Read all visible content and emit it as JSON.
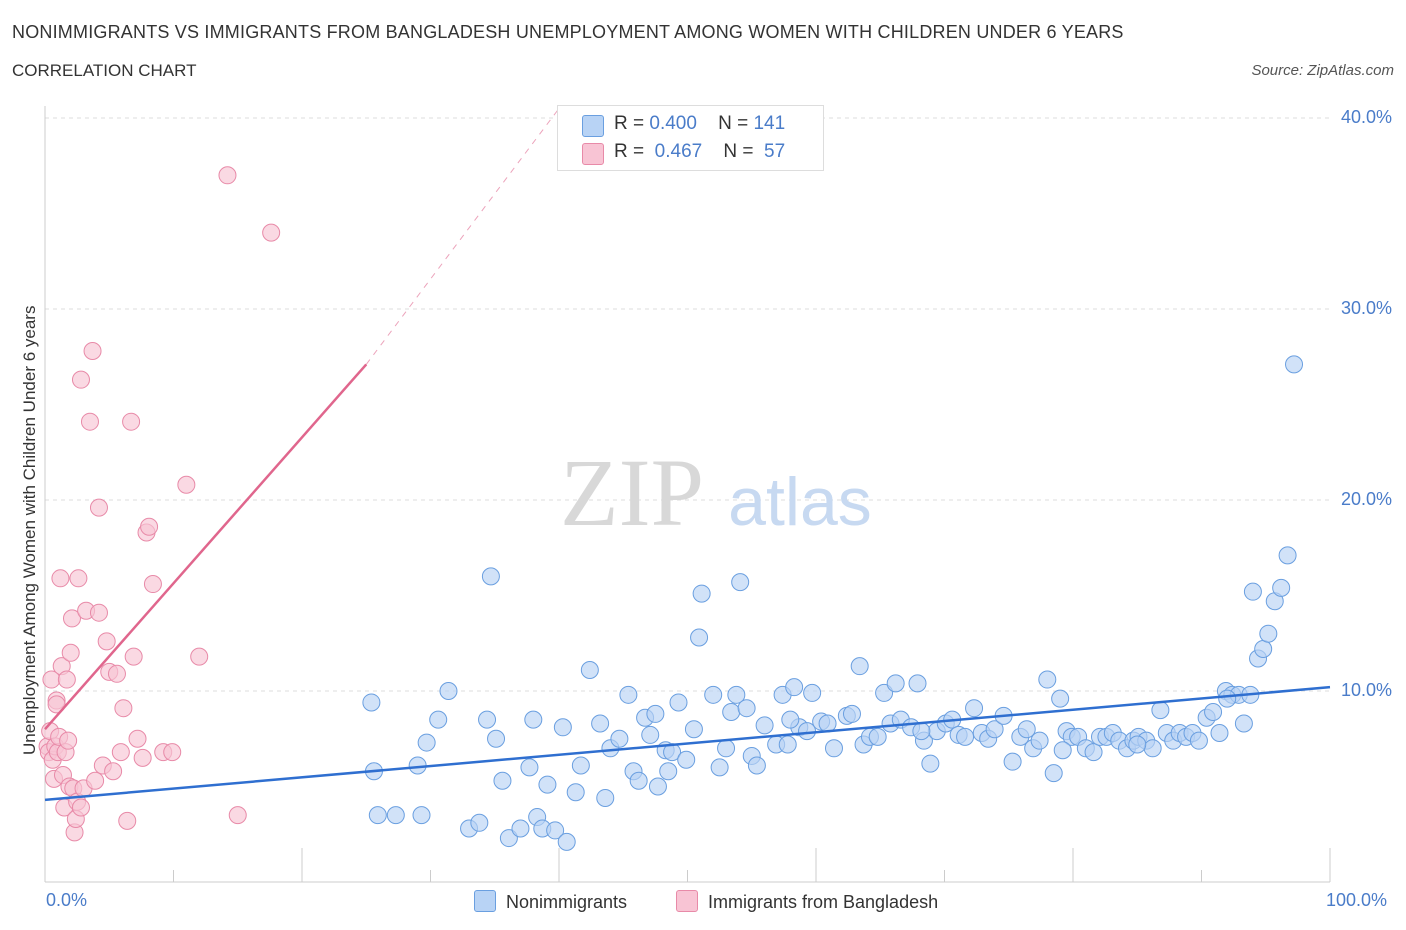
{
  "title": "NONIMMIGRANTS VS IMMIGRANTS FROM BANGLADESH UNEMPLOYMENT AMONG WOMEN WITH CHILDREN UNDER 6 YEARS",
  "subtitle": "CORRELATION CHART",
  "source": "Source: ZipAtlas.com",
  "watermark": {
    "zip": "ZIP",
    "atlas": "atlas"
  },
  "colors": {
    "blue_fill": "#b8d3f5",
    "blue_stroke": "#6a9fe0",
    "blue_line": "#2f6fd0",
    "pink_fill": "#f8c4d4",
    "pink_stroke": "#e88aa8",
    "pink_line": "#e0668d",
    "grid": "#dddddd",
    "axis_text": "#4a7cc9"
  },
  "legend": {
    "rows": [
      {
        "r_label": "R =",
        "r_value": "0.400",
        "n_label": "N =",
        "n_value": "141"
      },
      {
        "r_label": "R =",
        "r_value": "0.467",
        "n_label": "N =",
        "n_value": "57"
      }
    ]
  },
  "bottom_legend": {
    "series1": "Nonimmigrants",
    "series2": "Immigrants from Bangladesh"
  },
  "chart_data": {
    "type": "scatter",
    "xlabel": "",
    "ylabel": "Unemployment Among Women with Children Under 6 years",
    "xlim": [
      0,
      100
    ],
    "ylim": [
      0,
      40
    ],
    "y_ticks": [
      "10.0%",
      "20.0%",
      "30.0%",
      "40.0%"
    ],
    "y_tick_values": [
      10,
      20,
      30,
      40
    ],
    "x_tick_labels": [
      "0.0%",
      "100.0%"
    ],
    "grid": true,
    "legend_position": "top-center",
    "series": [
      {
        "name": "Nonimmigrants",
        "trend": {
          "x": [
            0,
            100
          ],
          "y": [
            4.3,
            10.2
          ]
        },
        "points": [
          [
            25.4,
            9.4
          ],
          [
            25.6,
            5.8
          ],
          [
            25.9,
            3.5
          ],
          [
            27.3,
            3.5
          ],
          [
            29.0,
            6.1
          ],
          [
            29.3,
            3.5
          ],
          [
            29.7,
            7.3
          ],
          [
            30.6,
            8.5
          ],
          [
            31.4,
            10.0
          ],
          [
            33.0,
            2.8
          ],
          [
            33.8,
            3.1
          ],
          [
            34.4,
            8.5
          ],
          [
            34.7,
            16.0
          ],
          [
            35.1,
            7.5
          ],
          [
            35.6,
            5.3
          ],
          [
            36.1,
            2.3
          ],
          [
            37.0,
            2.8
          ],
          [
            37.7,
            6.0
          ],
          [
            38.0,
            8.5
          ],
          [
            38.3,
            3.4
          ],
          [
            38.7,
            2.8
          ],
          [
            39.1,
            5.1
          ],
          [
            39.7,
            2.7
          ],
          [
            40.3,
            8.1
          ],
          [
            40.6,
            2.1
          ],
          [
            41.3,
            4.7
          ],
          [
            41.7,
            6.1
          ],
          [
            42.4,
            11.1
          ],
          [
            43.2,
            8.3
          ],
          [
            43.6,
            4.4
          ],
          [
            44.0,
            7.0
          ],
          [
            44.7,
            7.5
          ],
          [
            45.4,
            9.8
          ],
          [
            45.8,
            5.8
          ],
          [
            46.2,
            5.3
          ],
          [
            46.7,
            8.6
          ],
          [
            47.1,
            7.7
          ],
          [
            47.5,
            8.8
          ],
          [
            47.7,
            5.0
          ],
          [
            48.3,
            6.9
          ],
          [
            48.8,
            6.8
          ],
          [
            49.3,
            9.4
          ],
          [
            49.9,
            6.4
          ],
          [
            50.5,
            8.0
          ],
          [
            50.9,
            12.8
          ],
          [
            51.1,
            15.1
          ],
          [
            52.0,
            9.8
          ],
          [
            52.5,
            6.0
          ],
          [
            53.0,
            7.0
          ],
          [
            53.4,
            8.9
          ],
          [
            53.8,
            9.8
          ],
          [
            54.1,
            15.7
          ],
          [
            54.6,
            9.1
          ],
          [
            55.0,
            6.6
          ],
          [
            55.4,
            6.1
          ],
          [
            56.0,
            8.2
          ],
          [
            56.9,
            7.2
          ],
          [
            57.4,
            9.8
          ],
          [
            57.8,
            7.2
          ],
          [
            58.3,
            10.2
          ],
          [
            58.7,
            8.1
          ],
          [
            59.3,
            7.9
          ],
          [
            59.7,
            9.9
          ],
          [
            60.4,
            8.4
          ],
          [
            60.9,
            8.3
          ],
          [
            61.4,
            7.0
          ],
          [
            62.4,
            8.7
          ],
          [
            62.8,
            8.8
          ],
          [
            63.4,
            11.3
          ],
          [
            63.7,
            7.2
          ],
          [
            64.2,
            7.6
          ],
          [
            64.8,
            7.6
          ],
          [
            65.3,
            9.9
          ],
          [
            65.8,
            8.3
          ],
          [
            66.2,
            10.4
          ],
          [
            66.6,
            8.5
          ],
          [
            67.4,
            8.1
          ],
          [
            67.9,
            10.4
          ],
          [
            68.4,
            7.4
          ],
          [
            68.9,
            6.2
          ],
          [
            69.4,
            7.9
          ],
          [
            70.1,
            8.3
          ],
          [
            70.6,
            8.5
          ],
          [
            71.1,
            7.7
          ],
          [
            71.6,
            7.6
          ],
          [
            72.3,
            9.1
          ],
          [
            72.9,
            7.8
          ],
          [
            73.4,
            7.5
          ],
          [
            73.9,
            8.0
          ],
          [
            74.6,
            8.7
          ],
          [
            75.3,
            6.3
          ],
          [
            75.9,
            7.6
          ],
          [
            76.4,
            8.0
          ],
          [
            76.9,
            7.0
          ],
          [
            77.4,
            7.4
          ],
          [
            78.0,
            10.6
          ],
          [
            78.5,
            5.7
          ],
          [
            79.0,
            9.6
          ],
          [
            79.5,
            7.9
          ],
          [
            79.9,
            7.6
          ],
          [
            80.4,
            7.6
          ],
          [
            81.0,
            7.0
          ],
          [
            81.6,
            6.8
          ],
          [
            82.1,
            7.6
          ],
          [
            82.6,
            7.6
          ],
          [
            83.1,
            7.8
          ],
          [
            83.6,
            7.4
          ],
          [
            84.2,
            7.0
          ],
          [
            84.7,
            7.4
          ],
          [
            85.1,
            7.6
          ],
          [
            85.7,
            7.4
          ],
          [
            86.2,
            7.0
          ],
          [
            86.8,
            9.0
          ],
          [
            87.3,
            7.8
          ],
          [
            87.8,
            7.4
          ],
          [
            88.3,
            7.8
          ],
          [
            88.8,
            7.6
          ],
          [
            89.3,
            7.8
          ],
          [
            89.8,
            7.4
          ],
          [
            90.4,
            8.6
          ],
          [
            90.9,
            8.9
          ],
          [
            91.4,
            7.8
          ],
          [
            91.9,
            10.0
          ],
          [
            92.4,
            9.8
          ],
          [
            92.9,
            9.8
          ],
          [
            93.3,
            8.3
          ],
          [
            93.8,
            9.8
          ],
          [
            94.4,
            11.7
          ],
          [
            94.8,
            12.2
          ],
          [
            95.2,
            13.0
          ],
          [
            95.7,
            14.7
          ],
          [
            96.2,
            15.4
          ],
          [
            96.7,
            17.1
          ],
          [
            97.2,
            27.1
          ],
          [
            94.0,
            15.2
          ],
          [
            92.0,
            9.6
          ],
          [
            85.0,
            7.2
          ],
          [
            79.2,
            6.9
          ],
          [
            68.2,
            7.9
          ],
          [
            58.0,
            8.5
          ],
          [
            48.5,
            5.8
          ]
        ]
      },
      {
        "name": "Immigrants from Bangladesh",
        "trend": {
          "x": [
            0,
            25
          ],
          "y": [
            8.0,
            27.1
          ]
        },
        "trend_dashed": {
          "x": [
            25,
            40
          ],
          "y": [
            27.1,
            40.5
          ]
        },
        "points": [
          [
            0.2,
            7.1
          ],
          [
            0.3,
            6.8
          ],
          [
            0.4,
            7.9
          ],
          [
            0.5,
            10.6
          ],
          [
            0.6,
            6.4
          ],
          [
            0.7,
            5.4
          ],
          [
            0.8,
            7.1
          ],
          [
            0.9,
            9.5
          ],
          [
            1.0,
            6.8
          ],
          [
            1.1,
            7.6
          ],
          [
            1.2,
            15.9
          ],
          [
            1.3,
            11.3
          ],
          [
            1.4,
            5.6
          ],
          [
            1.5,
            3.9
          ],
          [
            1.6,
            6.8
          ],
          [
            1.7,
            10.6
          ],
          [
            1.8,
            7.4
          ],
          [
            1.9,
            5.0
          ],
          [
            2.0,
            12.0
          ],
          [
            2.1,
            13.8
          ],
          [
            2.2,
            4.9
          ],
          [
            2.3,
            2.6
          ],
          [
            2.4,
            3.3
          ],
          [
            2.5,
            4.2
          ],
          [
            2.6,
            15.9
          ],
          [
            2.8,
            3.9
          ],
          [
            3.0,
            4.9
          ],
          [
            3.2,
            14.2
          ],
          [
            3.5,
            24.1
          ],
          [
            3.7,
            27.8
          ],
          [
            2.8,
            26.3
          ],
          [
            3.9,
            5.3
          ],
          [
            4.2,
            19.6
          ],
          [
            4.5,
            6.1
          ],
          [
            4.8,
            12.6
          ],
          [
            5.0,
            11.0
          ],
          [
            5.3,
            5.8
          ],
          [
            5.6,
            10.9
          ],
          [
            5.9,
            6.8
          ],
          [
            6.1,
            9.1
          ],
          [
            6.4,
            3.2
          ],
          [
            6.7,
            24.1
          ],
          [
            6.9,
            11.8
          ],
          [
            7.2,
            7.5
          ],
          [
            7.6,
            6.5
          ],
          [
            7.9,
            18.3
          ],
          [
            8.1,
            18.6
          ],
          [
            8.4,
            15.6
          ],
          [
            9.2,
            6.8
          ],
          [
            9.9,
            6.8
          ],
          [
            11.0,
            20.8
          ],
          [
            12.0,
            11.8
          ],
          [
            14.2,
            37.0
          ],
          [
            15.0,
            3.5
          ],
          [
            17.6,
            34.0
          ],
          [
            0.9,
            9.3
          ],
          [
            4.2,
            14.1
          ]
        ]
      }
    ]
  }
}
